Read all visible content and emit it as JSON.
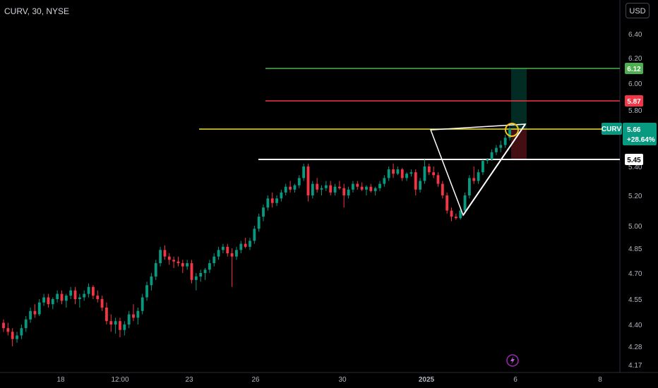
{
  "header": {
    "title": "CURV, 30, NYSE",
    "currency_button": "USD"
  },
  "chart_data": {
    "type": "candlestick",
    "symbol": "CURV",
    "interval": "30",
    "exchange": "NYSE",
    "y_ticks": [
      "6.40",
      "6.20",
      "6.00",
      "5.80",
      "5.40",
      "5.20",
      "5.00",
      "4.85",
      "4.70",
      "4.55",
      "4.40",
      "4.28",
      "4.17"
    ],
    "x_ticks": [
      "18",
      "12:00",
      "23",
      "26",
      "30",
      "2025",
      "6",
      "8"
    ],
    "price_tags": [
      {
        "label": "6.12",
        "value": 6.12,
        "color": "#4caf50"
      },
      {
        "label": "5.87",
        "value": 5.87,
        "color": "#f23645"
      },
      {
        "label": "5.45",
        "value": 5.45,
        "color": "#ffffff"
      }
    ],
    "last_price": {
      "symbol": "CURV",
      "price": "5.66",
      "change": "+28.64%",
      "color": "#089981"
    },
    "horizontal_lines": [
      {
        "value": 6.12,
        "color": "#4caf50"
      },
      {
        "value": 5.87,
        "color": "#f23645"
      },
      {
        "value": 5.66,
        "color": "#f0e130"
      },
      {
        "value": 5.45,
        "color": "#ffffff"
      }
    ],
    "annotations": [
      {
        "type": "triangle",
        "color": "#ffffff"
      },
      {
        "type": "circle",
        "color": "#f0c419"
      },
      {
        "type": "long-position",
        "entry": 5.66,
        "target": 6.12,
        "stop": 5.45
      }
    ],
    "candle_colors": {
      "up": "#089981",
      "down": "#f23645"
    },
    "candles": [
      [
        4.41,
        4.43,
        4.36,
        4.38
      ],
      [
        4.38,
        4.41,
        4.34,
        4.36
      ],
      [
        4.36,
        4.38,
        4.28,
        4.32
      ],
      [
        4.32,
        4.36,
        4.3,
        4.34
      ],
      [
        4.34,
        4.4,
        4.32,
        4.38
      ],
      [
        4.38,
        4.45,
        4.36,
        4.43
      ],
      [
        4.43,
        4.5,
        4.41,
        4.48
      ],
      [
        4.48,
        4.52,
        4.44,
        4.46
      ],
      [
        4.46,
        4.55,
        4.45,
        4.53
      ],
      [
        4.53,
        4.58,
        4.51,
        4.56
      ],
      [
        4.56,
        4.58,
        4.5,
        4.52
      ],
      [
        4.52,
        4.56,
        4.49,
        4.55
      ],
      [
        4.55,
        4.6,
        4.53,
        4.58
      ],
      [
        4.58,
        4.6,
        4.52,
        4.54
      ],
      [
        4.54,
        4.58,
        4.5,
        4.57
      ],
      [
        4.57,
        4.62,
        4.55,
        4.6
      ],
      [
        4.6,
        4.62,
        4.52,
        4.55
      ],
      [
        4.55,
        4.58,
        4.5,
        4.56
      ],
      [
        4.56,
        4.6,
        4.54,
        4.58
      ],
      [
        4.58,
        4.64,
        4.56,
        4.62
      ],
      [
        4.62,
        4.63,
        4.55,
        4.57
      ],
      [
        4.57,
        4.6,
        4.53,
        4.55
      ],
      [
        4.55,
        4.57,
        4.48,
        4.5
      ],
      [
        4.5,
        4.53,
        4.4,
        4.42
      ],
      [
        4.42,
        4.46,
        4.36,
        4.4
      ],
      [
        4.4,
        4.44,
        4.35,
        4.42
      ],
      [
        4.42,
        4.44,
        4.33,
        4.37
      ],
      [
        4.37,
        4.42,
        4.34,
        4.4
      ],
      [
        4.4,
        4.48,
        4.38,
        4.46
      ],
      [
        4.46,
        4.52,
        4.42,
        4.44
      ],
      [
        4.44,
        4.5,
        4.4,
        4.48
      ],
      [
        4.48,
        4.58,
        4.46,
        4.56
      ],
      [
        4.56,
        4.65,
        4.54,
        4.63
      ],
      [
        4.63,
        4.7,
        4.6,
        4.68
      ],
      [
        4.68,
        4.78,
        4.66,
        4.76
      ],
      [
        4.76,
        4.86,
        4.74,
        4.84
      ],
      [
        4.84,
        4.87,
        4.78,
        4.8
      ],
      [
        4.8,
        4.82,
        4.75,
        4.78
      ],
      [
        4.78,
        4.8,
        4.73,
        4.77
      ],
      [
        4.77,
        4.8,
        4.74,
        4.76
      ],
      [
        4.76,
        4.78,
        4.7,
        4.74
      ],
      [
        4.74,
        4.78,
        4.72,
        4.76
      ],
      [
        4.76,
        4.78,
        4.64,
        4.66
      ],
      [
        4.66,
        4.7,
        4.6,
        4.68
      ],
      [
        4.68,
        4.72,
        4.65,
        4.7
      ],
      [
        4.7,
        4.73,
        4.66,
        4.72
      ],
      [
        4.72,
        4.78,
        4.7,
        4.76
      ],
      [
        4.76,
        4.82,
        4.74,
        4.8
      ],
      [
        4.8,
        4.86,
        4.78,
        4.84
      ],
      [
        4.84,
        4.88,
        4.82,
        4.86
      ],
      [
        4.86,
        4.88,
        4.8,
        4.82
      ],
      [
        4.82,
        4.85,
        4.62,
        4.8
      ],
      [
        4.8,
        4.86,
        4.78,
        4.84
      ],
      [
        4.84,
        4.9,
        4.82,
        4.88
      ],
      [
        4.88,
        4.92,
        4.85,
        4.86
      ],
      [
        4.86,
        4.92,
        4.84,
        4.9
      ],
      [
        4.9,
        5.0,
        4.88,
        4.98
      ],
      [
        4.98,
        5.08,
        4.96,
        5.06
      ],
      [
        5.06,
        5.14,
        5.03,
        5.12
      ],
      [
        5.12,
        5.2,
        5.1,
        5.18
      ],
      [
        5.18,
        5.22,
        5.12,
        5.15
      ],
      [
        5.15,
        5.2,
        5.13,
        5.18
      ],
      [
        5.18,
        5.24,
        5.16,
        5.22
      ],
      [
        5.22,
        5.28,
        5.2,
        5.26
      ],
      [
        5.26,
        5.3,
        5.22,
        5.24
      ],
      [
        5.24,
        5.28,
        5.22,
        5.27
      ],
      [
        5.27,
        5.34,
        5.25,
        5.32
      ],
      [
        5.32,
        5.42,
        5.3,
        5.4
      ],
      [
        5.4,
        5.42,
        5.16,
        5.2
      ],
      [
        5.2,
        5.3,
        5.18,
        5.28
      ],
      [
        5.28,
        5.32,
        5.22,
        5.24
      ],
      [
        5.24,
        5.27,
        5.2,
        5.25
      ],
      [
        5.25,
        5.3,
        5.23,
        5.27
      ],
      [
        5.27,
        5.3,
        5.2,
        5.22
      ],
      [
        5.22,
        5.28,
        5.2,
        5.26
      ],
      [
        5.26,
        5.3,
        5.24,
        5.25
      ],
      [
        5.25,
        5.28,
        5.12,
        5.2
      ],
      [
        5.2,
        5.26,
        5.18,
        5.24
      ],
      [
        5.24,
        5.3,
        5.22,
        5.28
      ],
      [
        5.28,
        5.3,
        5.24,
        5.26
      ],
      [
        5.26,
        5.29,
        5.23,
        5.24
      ],
      [
        5.24,
        5.27,
        5.2,
        5.26
      ],
      [
        5.26,
        5.28,
        5.22,
        5.23
      ],
      [
        5.23,
        5.26,
        5.2,
        5.25
      ],
      [
        5.25,
        5.3,
        5.23,
        5.28
      ],
      [
        5.28,
        5.34,
        5.26,
        5.32
      ],
      [
        5.32,
        5.4,
        5.3,
        5.38
      ],
      [
        5.38,
        5.42,
        5.32,
        5.35
      ],
      [
        5.35,
        5.4,
        5.34,
        5.38
      ],
      [
        5.38,
        5.39,
        5.3,
        5.32
      ],
      [
        5.32,
        5.36,
        5.3,
        5.35
      ],
      [
        5.35,
        5.38,
        5.33,
        5.36
      ],
      [
        5.36,
        5.38,
        5.2,
        5.24
      ],
      [
        5.24,
        5.32,
        5.22,
        5.3
      ],
      [
        5.3,
        5.45,
        5.28,
        5.4
      ],
      [
        5.4,
        5.42,
        5.34,
        5.36
      ],
      [
        5.36,
        5.4,
        5.32,
        5.34
      ],
      [
        5.34,
        5.36,
        5.26,
        5.28
      ],
      [
        5.28,
        5.3,
        5.18,
        5.2
      ],
      [
        5.2,
        5.22,
        5.08,
        5.1
      ],
      [
        5.1,
        5.12,
        5.03,
        5.06
      ],
      [
        5.06,
        5.08,
        5.04,
        5.05
      ],
      [
        5.05,
        5.12,
        5.04,
        5.1
      ],
      [
        5.1,
        5.22,
        5.08,
        5.2
      ],
      [
        5.2,
        5.34,
        5.18,
        5.32
      ],
      [
        5.32,
        5.4,
        5.28,
        5.3
      ],
      [
        5.3,
        5.38,
        5.28,
        5.36
      ],
      [
        5.36,
        5.45,
        5.34,
        5.44
      ],
      [
        5.44,
        5.46,
        5.42,
        5.45
      ],
      [
        5.45,
        5.52,
        5.44,
        5.5
      ],
      [
        5.5,
        5.55,
        5.48,
        5.53
      ],
      [
        5.53,
        5.58,
        5.5,
        5.55
      ],
      [
        5.55,
        5.62,
        5.53,
        5.6
      ],
      [
        5.6,
        5.68,
        5.58,
        5.66
      ]
    ]
  }
}
